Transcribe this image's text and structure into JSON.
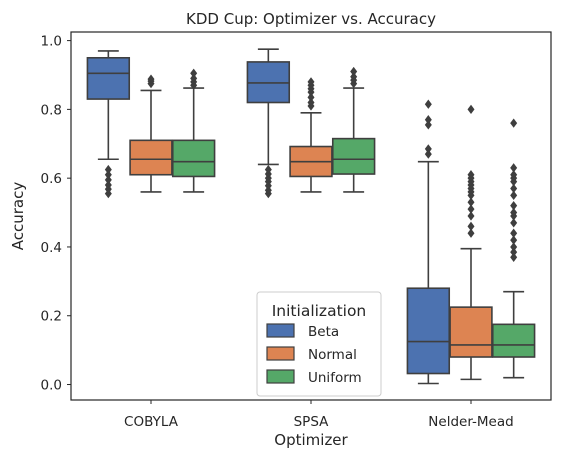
{
  "chart_data": {
    "type": "boxplot",
    "title": "KDD Cup: Optimizer vs. Accuracy",
    "xlabel": "Optimizer",
    "ylabel": "Accuracy",
    "categories": [
      "COBYLA",
      "SPSA",
      "Nelder-Mead"
    ],
    "ylim": [
      -0.045,
      1.025
    ],
    "yticks": [
      0.0,
      0.2,
      0.4,
      0.6,
      0.8,
      1.0
    ],
    "ytick_labels": [
      "0.0",
      "0.2",
      "0.4",
      "0.6",
      "0.8",
      "1.0"
    ],
    "grid": false,
    "legend": {
      "title": "Initialization",
      "placement": "lower-center"
    },
    "series": [
      {
        "name": "Beta",
        "color": "#4c72b0",
        "boxes": [
          {
            "whisker_low": 0.655,
            "q1": 0.83,
            "median": 0.905,
            "q3": 0.95,
            "whisker_high": 0.97,
            "outliers": [
              0.555,
              0.568,
              0.58,
              0.595,
              0.61,
              0.625
            ]
          },
          {
            "whisker_low": 0.64,
            "q1": 0.82,
            "median": 0.877,
            "q3": 0.938,
            "whisker_high": 0.975,
            "outliers": [
              0.555,
              0.565,
              0.578,
              0.59,
              0.6,
              0.612,
              0.625
            ]
          },
          {
            "whisker_low": 0.003,
            "q1": 0.032,
            "median": 0.125,
            "q3": 0.28,
            "whisker_high": 0.648,
            "outliers": [
              0.67,
              0.685,
              0.755,
              0.77,
              0.815
            ]
          }
        ]
      },
      {
        "name": "Normal",
        "color": "#dd8452",
        "boxes": [
          {
            "whisker_low": 0.56,
            "q1": 0.61,
            "median": 0.655,
            "q3": 0.71,
            "whisker_high": 0.855,
            "outliers": [
              0.875,
              0.882,
              0.888
            ]
          },
          {
            "whisker_low": 0.56,
            "q1": 0.605,
            "median": 0.648,
            "q3": 0.692,
            "whisker_high": 0.79,
            "outliers": [
              0.81,
              0.82,
              0.835,
              0.85,
              0.86,
              0.87,
              0.88
            ]
          },
          {
            "whisker_low": 0.015,
            "q1": 0.08,
            "median": 0.115,
            "q3": 0.225,
            "whisker_high": 0.395,
            "outliers": [
              0.44,
              0.46,
              0.49,
              0.51,
              0.53,
              0.55,
              0.56,
              0.57,
              0.58,
              0.59,
              0.6,
              0.61,
              0.8
            ]
          }
        ]
      },
      {
        "name": "Uniform",
        "color": "#55a868",
        "boxes": [
          {
            "whisker_low": 0.56,
            "q1": 0.605,
            "median": 0.648,
            "q3": 0.71,
            "whisker_high": 0.862,
            "outliers": [
              0.87,
              0.88,
              0.89,
              0.905
            ]
          },
          {
            "whisker_low": 0.56,
            "q1": 0.612,
            "median": 0.655,
            "q3": 0.715,
            "whisker_high": 0.862,
            "outliers": [
              0.875,
              0.885,
              0.895,
              0.91
            ]
          },
          {
            "whisker_low": 0.02,
            "q1": 0.08,
            "median": 0.115,
            "q3": 0.175,
            "whisker_high": 0.27,
            "outliers": [
              0.37,
              0.385,
              0.4,
              0.42,
              0.44,
              0.47,
              0.49,
              0.5,
              0.52,
              0.55,
              0.57,
              0.59,
              0.6,
              0.61,
              0.63,
              0.76
            ]
          }
        ]
      }
    ]
  }
}
